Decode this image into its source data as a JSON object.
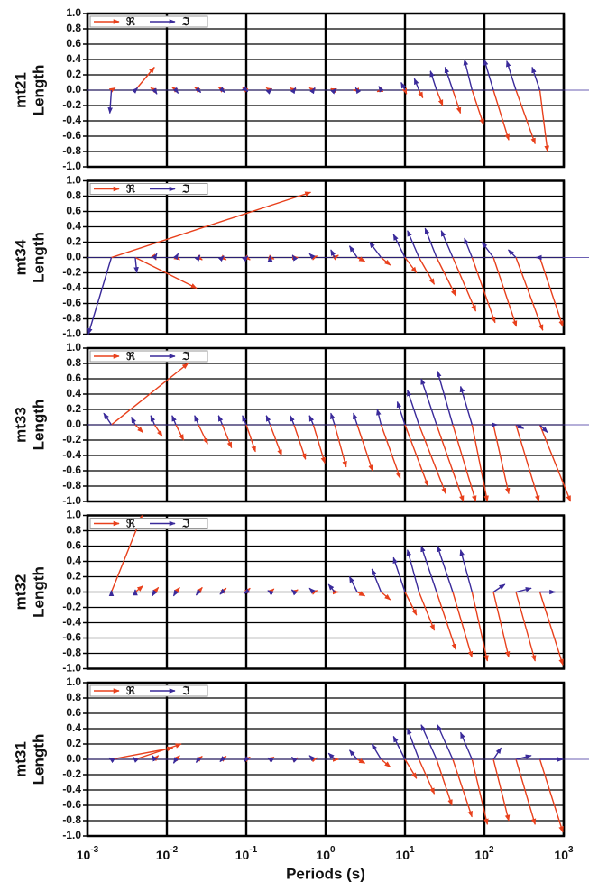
{
  "chart_data": [
    {
      "type": "vector",
      "site": "mt21",
      "ylabel": "Length",
      "xscale": "log",
      "xlim": [
        0.001,
        1000
      ],
      "ylim": [
        -1,
        1
      ],
      "grid": true,
      "legend": "upper left",
      "xticks": [
        0.001,
        0.01,
        0.1,
        1,
        10,
        100,
        1000
      ],
      "yticks": [
        {
          "value": 1,
          "label": "1.0"
        },
        0.8,
        0.6,
        0.4,
        0.2,
        {
          "value": 0,
          "label": "0.0"
        },
        -0.2,
        -0.4,
        -0.6,
        -0.8,
        {
          "value": -1,
          "label": "-1.0"
        }
      ],
      "x": [
        0.002,
        0.004,
        0.007,
        0.013,
        0.025,
        0.05,
        0.1,
        0.2,
        0.4,
        0.7,
        1.3,
        2.5,
        5,
        10,
        15,
        25,
        40,
        70,
        130,
        250,
        500
      ],
      "series": [
        {
          "name": "ℜ",
          "color": "#e8401c",
          "u": [
            0.05,
            0.25,
            -0.05,
            -0.05,
            -0.05,
            -0.05,
            -0.05,
            -0.05,
            -0.05,
            -0.05,
            -0.05,
            -0.05,
            -0.05,
            0.02,
            0.05,
            0.08,
            0.1,
            0.15,
            0.2,
            0.25,
            0.1
          ],
          "values": [
            0.03,
            0.3,
            0.03,
            0.04,
            0.04,
            0.04,
            0.04,
            0.03,
            0.03,
            0.03,
            0.02,
            0.0,
            -0.02,
            -0.05,
            -0.1,
            -0.2,
            -0.3,
            -0.45,
            -0.65,
            -0.7,
            -0.8
          ]
        },
        {
          "name": "ℑ",
          "color": "#3a2a9a",
          "u": [
            -0.02,
            0.03,
            0.03,
            0.03,
            0.03,
            0.03,
            0.02,
            0.02,
            0.02,
            0.02,
            0.02,
            -0.02,
            -0.03,
            -0.05,
            -0.06,
            -0.08,
            -0.1,
            -0.1,
            -0.12,
            -0.12,
            -0.1
          ],
          "values": [
            -0.3,
            0.03,
            -0.05,
            -0.04,
            -0.03,
            -0.03,
            -0.02,
            0.02,
            0.03,
            0.03,
            0.02,
            0.03,
            0.05,
            0.1,
            0.15,
            0.25,
            0.3,
            0.4,
            0.4,
            0.38,
            0.3
          ]
        }
      ]
    },
    {
      "type": "vector",
      "site": "mt34",
      "ylabel": "Length",
      "xscale": "log",
      "xlim": [
        0.001,
        1000
      ],
      "ylim": [
        -1,
        1
      ],
      "grid": true,
      "legend": "upper left",
      "xticks": [
        0.001,
        0.01,
        0.1,
        1,
        10,
        100,
        1000
      ],
      "yticks": [
        {
          "value": 1,
          "label": "1.0"
        },
        0.8,
        0.6,
        0.4,
        0.2,
        {
          "value": 0,
          "label": "0.0"
        },
        -0.2,
        -0.4,
        -0.6,
        -0.8,
        {
          "value": -1,
          "label": "-1.0"
        }
      ],
      "x": [
        0.002,
        0.004,
        0.007,
        0.013,
        0.025,
        0.05,
        0.1,
        0.2,
        0.4,
        0.7,
        1.3,
        2.5,
        5,
        10,
        15,
        25,
        40,
        70,
        130,
        250,
        500
      ],
      "series": [
        {
          "name": "ℜ",
          "color": "#e8401c",
          "u": [
            2.6,
            0.8,
            0.02,
            0.05,
            0.05,
            0.05,
            0.05,
            0.05,
            0.05,
            0.05,
            0.05,
            0.1,
            0.12,
            0.15,
            0.2,
            0.25,
            0.3,
            0.3,
            0.3,
            0.35,
            0.3
          ],
          "values": [
            0.85,
            -0.4,
            -0.03,
            -0.03,
            -0.03,
            -0.03,
            -0.03,
            -0.02,
            0.0,
            0.02,
            0.03,
            -0.05,
            -0.1,
            -0.2,
            -0.35,
            -0.5,
            -0.7,
            -0.85,
            -0.9,
            -0.95,
            -0.9
          ]
        },
        {
          "name": "ℑ",
          "color": "#3a2a9a",
          "u": [
            -0.3,
            0.02,
            0.03,
            0.03,
            0.02,
            0.02,
            0.02,
            0.0,
            -0.02,
            -0.05,
            -0.05,
            -0.1,
            -0.15,
            -0.15,
            -0.15,
            -0.15,
            -0.15,
            -0.1,
            -0.15,
            -0.1,
            -0.05
          ],
          "values": [
            -1.0,
            -0.2,
            0.05,
            0.05,
            0.03,
            0.02,
            0.02,
            0.02,
            0.03,
            0.05,
            0.1,
            0.15,
            0.2,
            0.3,
            0.35,
            0.38,
            0.35,
            0.25,
            0.2,
            0.1,
            0.0
          ]
        }
      ]
    },
    {
      "type": "vector",
      "site": "mt33",
      "ylabel": "Length",
      "xscale": "log",
      "xlim": [
        0.001,
        1000
      ],
      "ylim": [
        -1,
        1
      ],
      "grid": true,
      "legend": "upper left",
      "xticks": [
        0.001,
        0.01,
        0.1,
        1,
        10,
        100,
        1000
      ],
      "yticks": [
        {
          "value": 1,
          "label": "1.0"
        },
        0.8,
        0.6,
        0.4,
        0.2,
        {
          "value": 0,
          "label": "0.0"
        },
        -0.2,
        -0.4,
        -0.6,
        -0.8,
        {
          "value": -1,
          "label": "-1.0"
        }
      ],
      "x": [
        0.002,
        0.004,
        0.007,
        0.013,
        0.025,
        0.05,
        0.1,
        0.2,
        0.4,
        0.7,
        1.3,
        2.5,
        5,
        10,
        15,
        25,
        40,
        70,
        130,
        250,
        500
      ],
      "series": [
        {
          "name": "ℜ",
          "color": "#e8401c",
          "u": [
            1.0,
            0.1,
            0.1,
            0.1,
            0.12,
            0.12,
            0.12,
            0.15,
            0.15,
            0.15,
            0.15,
            0.2,
            0.25,
            0.3,
            0.35,
            0.35,
            0.3,
            0.2,
            0.2,
            0.3,
            0.4
          ],
          "values": [
            0.8,
            -0.1,
            -0.15,
            -0.2,
            -0.25,
            -0.3,
            -0.35,
            -0.4,
            -0.45,
            -0.5,
            -0.55,
            -0.6,
            -0.7,
            -0.8,
            -0.9,
            -1.0,
            -1.0,
            -1.0,
            -0.9,
            -1.0,
            -1.0
          ]
        },
        {
          "name": "ℑ",
          "color": "#3a2a9a",
          "u": [
            -0.1,
            -0.05,
            -0.05,
            -0.05,
            -0.05,
            -0.05,
            -0.05,
            -0.05,
            -0.05,
            -0.05,
            -0.05,
            -0.05,
            -0.05,
            -0.1,
            -0.15,
            -0.2,
            -0.2,
            -0.15,
            0.05,
            0.1,
            0.1
          ],
          "values": [
            0.15,
            0.1,
            0.12,
            0.12,
            0.12,
            0.12,
            0.12,
            0.12,
            0.12,
            0.12,
            0.15,
            0.15,
            0.2,
            0.3,
            0.45,
            0.6,
            0.7,
            0.5,
            0.0,
            -0.05,
            -0.1
          ]
        }
      ]
    },
    {
      "type": "vector",
      "site": "mt32",
      "ylabel": "Length",
      "xscale": "log",
      "xlim": [
        0.001,
        1000
      ],
      "ylim": [
        -1,
        1
      ],
      "grid": true,
      "legend": "upper left",
      "xticks": [
        0.001,
        0.01,
        0.1,
        1,
        10,
        100,
        1000
      ],
      "yticks": [
        {
          "value": 1,
          "label": "1.0"
        },
        0.8,
        0.6,
        0.4,
        0.2,
        {
          "value": 0,
          "label": "0.0"
        },
        -0.2,
        -0.4,
        -0.6,
        -0.8,
        {
          "value": -1,
          "label": "-1.0"
        }
      ],
      "x": [
        0.002,
        0.004,
        0.007,
        0.013,
        0.025,
        0.05,
        0.1,
        0.2,
        0.4,
        0.7,
        1.3,
        2.5,
        5,
        10,
        15,
        25,
        40,
        70,
        130,
        250,
        500
      ],
      "series": [
        {
          "name": "ℜ",
          "color": "#e8401c",
          "u": [
            0.4,
            0.1,
            0.05,
            0.05,
            0.05,
            0.05,
            0.05,
            0.05,
            0.05,
            0.05,
            0.05,
            0.1,
            0.12,
            0.15,
            0.2,
            0.25,
            0.25,
            0.2,
            0.2,
            0.25,
            0.3
          ],
          "values": [
            1.0,
            0.08,
            0.06,
            0.06,
            0.06,
            0.05,
            0.05,
            0.04,
            0.03,
            0.02,
            0.0,
            -0.05,
            -0.1,
            -0.3,
            -0.5,
            -0.75,
            -0.85,
            -0.9,
            -0.85,
            -0.9,
            -0.95
          ]
        },
        {
          "name": "ℑ",
          "color": "#3a2a9a",
          "u": [
            0.0,
            0.0,
            -0.03,
            -0.03,
            -0.03,
            -0.03,
            -0.03,
            -0.03,
            -0.03,
            -0.05,
            -0.08,
            -0.1,
            -0.12,
            -0.15,
            -0.15,
            -0.2,
            -0.2,
            -0.15,
            0.15,
            0.2,
            0.2
          ],
          "values": [
            0.02,
            0.03,
            -0.05,
            -0.05,
            -0.04,
            -0.03,
            -0.02,
            0.02,
            0.03,
            0.05,
            0.1,
            0.2,
            0.3,
            0.45,
            0.55,
            0.6,
            0.6,
            0.55,
            0.1,
            0.05,
            0.0
          ]
        }
      ]
    },
    {
      "type": "vector",
      "site": "mt31",
      "ylabel": "Length",
      "xlabel": "Periods (s)",
      "xscale": "log",
      "xlim": [
        0.001,
        1000
      ],
      "ylim": [
        -1,
        1
      ],
      "grid": true,
      "legend": "upper left",
      "xticks": [
        {
          "value": 0.001,
          "label": "10",
          "exponent": "-3"
        },
        {
          "value": 0.01,
          "label": "10",
          "exponent": "-2"
        },
        {
          "value": 0.1,
          "label": "10",
          "exponent": "-1"
        },
        {
          "value": 1,
          "label": "10",
          "exponent": "0"
        },
        {
          "value": 10,
          "label": "10",
          "exponent": "1"
        },
        {
          "value": 100,
          "label": "10",
          "exponent": "2"
        },
        {
          "value": 1000,
          "label": "10",
          "exponent": "3"
        }
      ],
      "yticks": [
        {
          "value": 1,
          "label": "1.0"
        },
        0.8,
        0.6,
        0.4,
        0.2,
        {
          "value": 0,
          "label": "0.0"
        },
        -0.2,
        -0.4,
        -0.6,
        -0.8,
        {
          "value": -1,
          "label": "-1.0"
        }
      ],
      "x": [
        0.002,
        0.004,
        0.007,
        0.013,
        0.025,
        0.05,
        0.1,
        0.2,
        0.4,
        0.7,
        1.3,
        2.5,
        5,
        10,
        15,
        25,
        40,
        70,
        130,
        250,
        500
      ],
      "series": [
        {
          "name": "ℜ",
          "color": "#e8401c",
          "u": [
            0.8,
            0.6,
            0.05,
            0.05,
            0.05,
            0.05,
            0.05,
            0.05,
            0.05,
            0.05,
            0.05,
            0.1,
            0.12,
            0.15,
            0.2,
            0.2,
            0.25,
            0.2,
            0.2,
            0.25,
            0.3
          ],
          "values": [
            0.15,
            0.2,
            0.05,
            0.05,
            0.04,
            0.04,
            0.03,
            0.03,
            0.02,
            0.02,
            0.0,
            -0.05,
            -0.1,
            -0.25,
            -0.45,
            -0.6,
            -0.75,
            -0.85,
            -0.8,
            -0.85,
            -0.95
          ]
        },
        {
          "name": "ℑ",
          "color": "#3a2a9a",
          "u": [
            -0.03,
            -0.03,
            -0.03,
            -0.03,
            -0.03,
            -0.03,
            -0.03,
            -0.03,
            -0.03,
            -0.05,
            -0.08,
            -0.1,
            -0.12,
            -0.15,
            -0.15,
            -0.2,
            -0.2,
            -0.15,
            0.1,
            0.2,
            0.3
          ],
          "values": [
            0.02,
            0.03,
            0.05,
            -0.05,
            -0.04,
            -0.03,
            -0.03,
            0.02,
            0.03,
            0.05,
            0.08,
            0.12,
            0.2,
            0.3,
            0.4,
            0.45,
            0.45,
            0.35,
            0.15,
            0.05,
            0.0
          ]
        }
      ]
    }
  ]
}
